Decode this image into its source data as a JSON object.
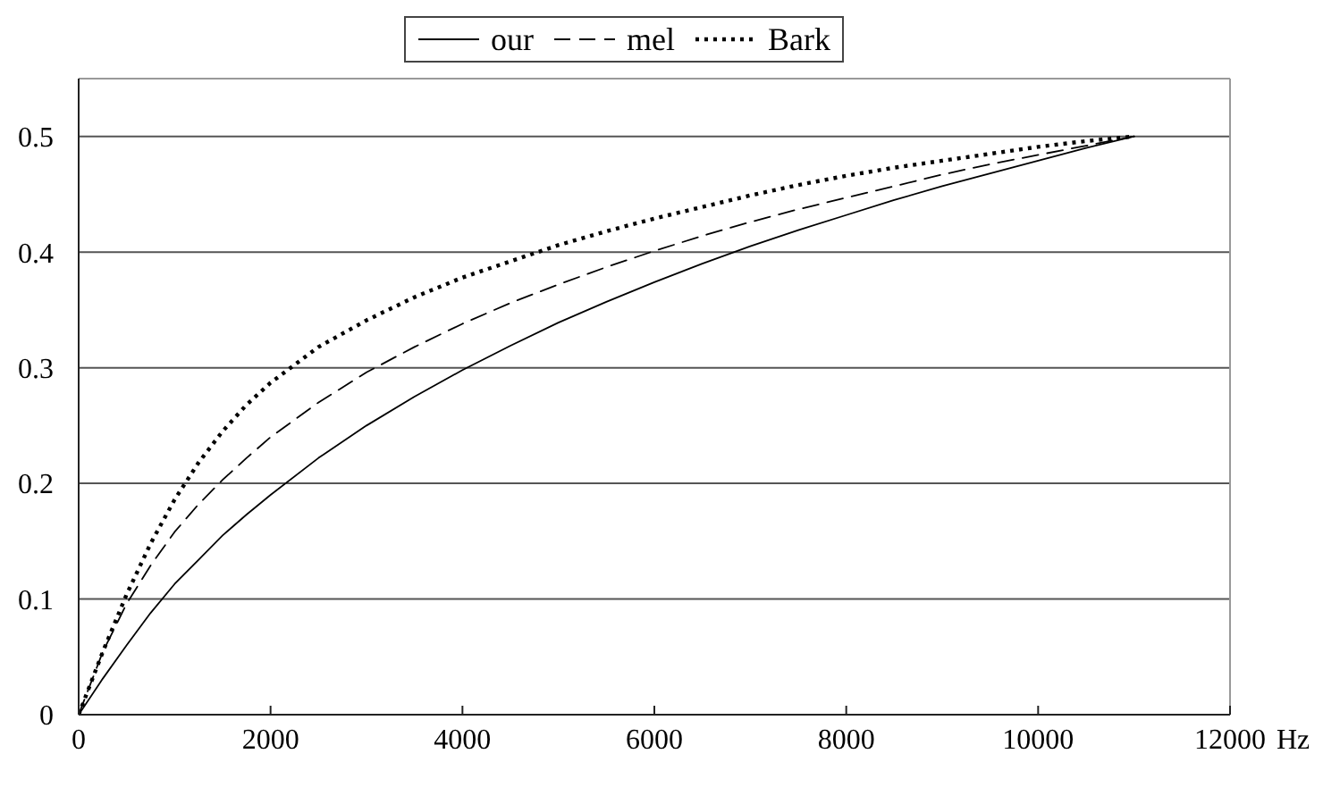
{
  "chart_data": {
    "type": "line",
    "xlabel": "Hz",
    "x": [
      0,
      250,
      500,
      750,
      1000,
      1250,
      1500,
      1750,
      2000,
      2500,
      3000,
      3500,
      4000,
      4500,
      5000,
      5500,
      6000,
      6500,
      7000,
      7500,
      8000,
      8500,
      9000,
      9500,
      10000,
      10500,
      11000
    ],
    "series": [
      {
        "name": "our",
        "color": "#000000",
        "line_style": "solid",
        "values": [
          0,
          0.031,
          0.06,
          0.088,
          0.113,
          0.134,
          0.155,
          0.173,
          0.19,
          0.222,
          0.25,
          0.275,
          0.298,
          0.319,
          0.339,
          0.357,
          0.374,
          0.39,
          0.405,
          0.419,
          0.432,
          0.445,
          0.457,
          0.468,
          0.479,
          0.49,
          0.5
        ]
      },
      {
        "name": "mel",
        "color": "#000000",
        "line_style": "dashed",
        "values": [
          0,
          0.054,
          0.096,
          0.129,
          0.158,
          0.182,
          0.203,
          0.222,
          0.24,
          0.27,
          0.296,
          0.318,
          0.338,
          0.356,
          0.372,
          0.387,
          0.401,
          0.414,
          0.426,
          0.437,
          0.447,
          0.457,
          0.467,
          0.476,
          0.484,
          0.492,
          0.5
        ]
      },
      {
        "name": "Bark",
        "color": "#000000",
        "line_style": "dotted",
        "values": [
          0,
          0.054,
          0.104,
          0.148,
          0.186,
          0.218,
          0.245,
          0.268,
          0.287,
          0.318,
          0.341,
          0.361,
          0.378,
          0.392,
          0.406,
          0.418,
          0.429,
          0.439,
          0.449,
          0.458,
          0.466,
          0.473,
          0.479,
          0.485,
          0.491,
          0.496,
          0.5
        ]
      }
    ],
    "xlim": [
      0,
      12000
    ],
    "xticks": [
      0,
      2000,
      4000,
      6000,
      8000,
      10000,
      12000
    ],
    "ylim": [
      0,
      0.55
    ],
    "yticks": [
      0,
      0.1,
      0.2,
      0.3,
      0.4,
      0.5
    ],
    "grid": "y",
    "legend": "top",
    "marker": "none"
  }
}
